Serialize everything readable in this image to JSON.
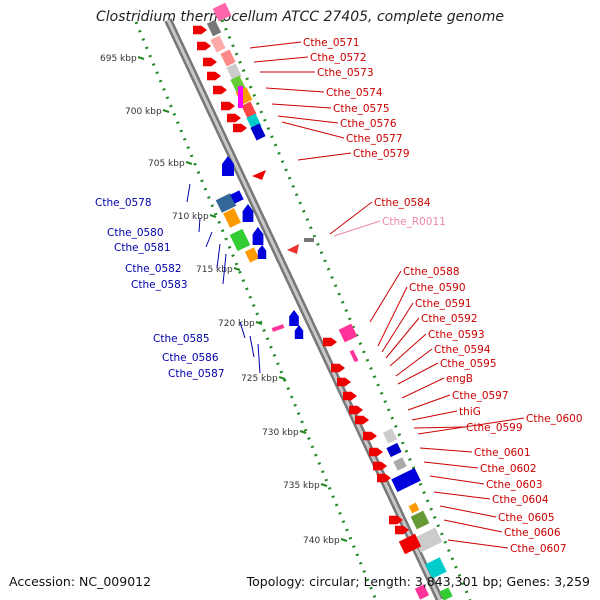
{
  "title": "Clostridium thermocellum ATCC 27405, complete genome",
  "footer": {
    "accession": "Accession: NC_009012",
    "summary": "Topology: circular; Length: 3,843,301 bp; Genes: 3,259"
  },
  "colors": {
    "forward_label": "#cc0000",
    "reverse_label": "#0000aa",
    "rna_label": "#ee88aa",
    "backbone": "#999999",
    "ruler_dots": "#228822"
  },
  "kbp_ticks": [
    "695 kbp",
    "700 kbp",
    "705 kbp",
    "710 kbp",
    "715 kbp",
    "720 kbp",
    "725 kbp",
    "730 kbp",
    "735 kbp",
    "740 kbp"
  ],
  "genes_forward": [
    "Cthe_0571",
    "Cthe_0572",
    "Cthe_0573",
    "Cthe_0574",
    "Cthe_0575",
    "Cthe_0576",
    "Cthe_0577",
    "Cthe_0579",
    "Cthe_0584",
    "Cthe_R0011",
    "Cthe_0588",
    "Cthe_0590",
    "Cthe_0591",
    "Cthe_0592",
    "Cthe_0593",
    "Cthe_0594",
    "Cthe_0595",
    "engB",
    "Cthe_0597",
    "thiG",
    "Cthe_0599",
    "Cthe_0600",
    "Cthe_0601",
    "Cthe_0602",
    "Cthe_0603",
    "Cthe_0604",
    "Cthe_0605",
    "Cthe_0606",
    "Cthe_0607"
  ],
  "genes_reverse": [
    "Cthe_0578",
    "Cthe_0580",
    "Cthe_0581",
    "Cthe_0582",
    "Cthe_0583",
    "Cthe_0585",
    "Cthe_0586",
    "Cthe_0587"
  ]
}
